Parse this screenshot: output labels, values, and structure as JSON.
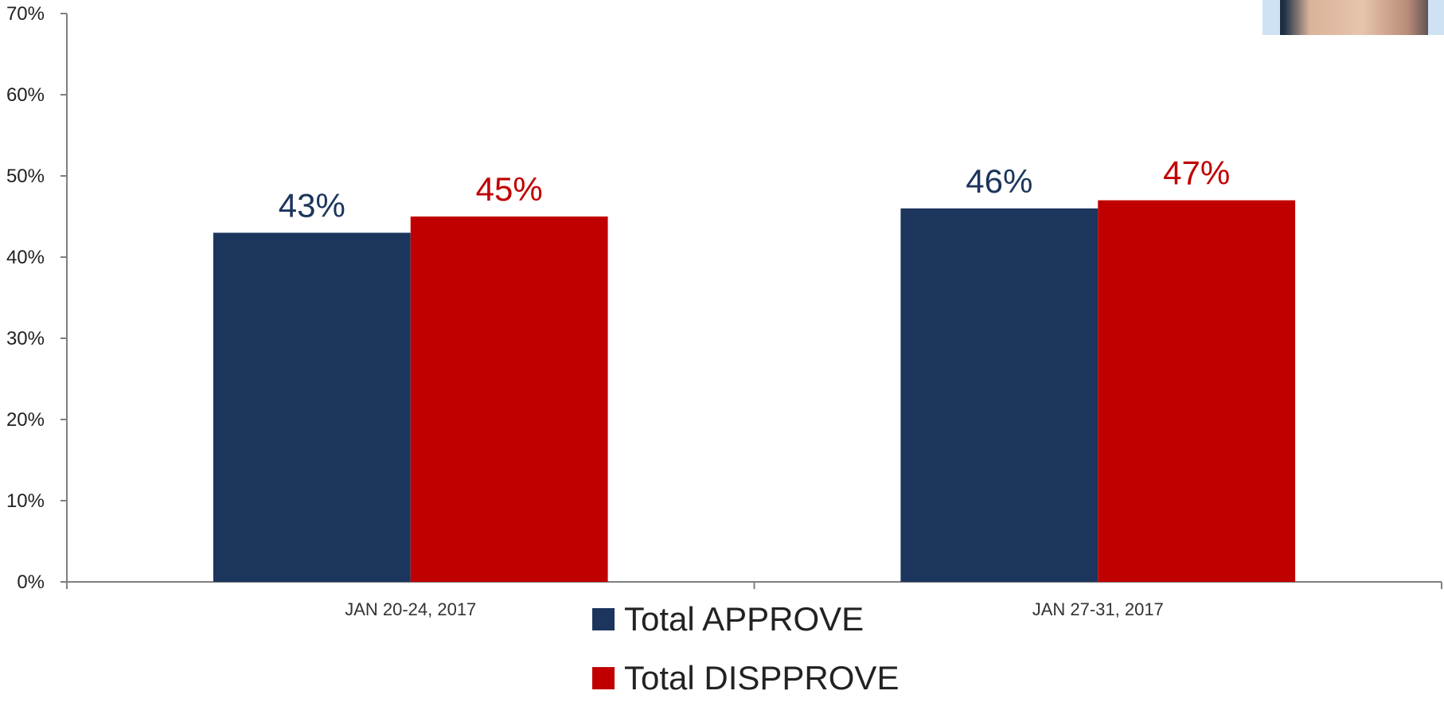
{
  "chart_data": {
    "type": "bar",
    "categories": [
      "JAN 20-24, 2017",
      "JAN 27-31, 2017"
    ],
    "series": [
      {
        "name": "Total APPROVE",
        "values": [
          43,
          46
        ],
        "labels": [
          "43%",
          "46%"
        ],
        "color": "#1c355c"
      },
      {
        "name": "Total DISPPROVE",
        "values": [
          45,
          47
        ],
        "labels": [
          "45%",
          "47%"
        ],
        "color": "#c00000"
      }
    ],
    "y_ticks": [
      {
        "value": 0,
        "label": "0%"
      },
      {
        "value": 10,
        "label": "10%"
      },
      {
        "value": 20,
        "label": "20%"
      },
      {
        "value": 30,
        "label": "30%"
      },
      {
        "value": 40,
        "label": "40%"
      },
      {
        "value": 50,
        "label": "50%"
      },
      {
        "value": 60,
        "label": "60%"
      },
      {
        "value": 70,
        "label": "70%"
      }
    ],
    "ylim": [
      0,
      70
    ],
    "grid": false,
    "legend_position": "bottom"
  },
  "legend": {
    "items": [
      {
        "label": "Total APPROVE",
        "color": "#1c355c"
      },
      {
        "label": "Total DISPPROVE",
        "color": "#c00000"
      }
    ]
  },
  "photo_corner": {
    "icon": "person-photo-icon"
  }
}
